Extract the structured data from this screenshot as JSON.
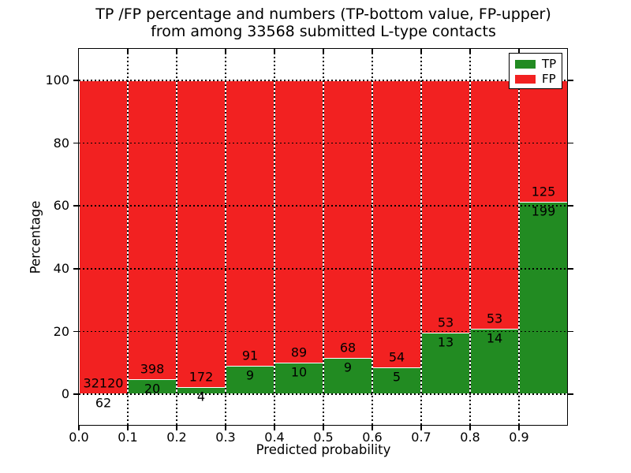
{
  "figure": {
    "title_line1": "TP /FP percentage and numbers (TP-bottom value, FP-upper)",
    "title_line2": "from among 33568 submitted L-type contacts"
  },
  "chart_data": {
    "type": "bar",
    "stacked": true,
    "title": "TP /FP percentage and numbers (TP-bottom value, FP-upper) from among 33568 submitted L-type contacts",
    "xlabel": "Predicted probability",
    "ylabel": "Percentage",
    "xlim": [
      0.0,
      1.0
    ],
    "ylim": [
      -10,
      110
    ],
    "grid": "dotted black on both axes",
    "legend_position": "upper right",
    "total_contacts": 33568,
    "series": [
      {
        "name": "TP",
        "color": "#228b22"
      },
      {
        "name": "FP",
        "color": "#f22121"
      }
    ],
    "xticks": {
      "values": [
        0.0,
        0.1,
        0.2,
        0.3,
        0.4,
        0.5,
        0.6,
        0.7,
        0.8,
        0.9
      ],
      "labels": [
        "0.0",
        "0.1",
        "0.2",
        "0.3",
        "0.4",
        "0.5",
        "0.6",
        "0.7",
        "0.8",
        "0.9"
      ]
    },
    "yticks": {
      "values": [
        0,
        20,
        40,
        60,
        80,
        100
      ],
      "labels": [
        "0",
        "20",
        "40",
        "60",
        "80",
        "100"
      ]
    },
    "bins": [
      {
        "range": [
          0.0,
          0.1
        ],
        "tp": 62,
        "fp": 32120
      },
      {
        "range": [
          0.1,
          0.2
        ],
        "tp": 20,
        "fp": 398
      },
      {
        "range": [
          0.2,
          0.3
        ],
        "tp": 4,
        "fp": 172
      },
      {
        "range": [
          0.3,
          0.4
        ],
        "tp": 9,
        "fp": 91
      },
      {
        "range": [
          0.4,
          0.5
        ],
        "tp": 10,
        "fp": 89
      },
      {
        "range": [
          0.5,
          0.6
        ],
        "tp": 9,
        "fp": 68
      },
      {
        "range": [
          0.6,
          0.7
        ],
        "tp": 5,
        "fp": 54
      },
      {
        "range": [
          0.7,
          0.8
        ],
        "tp": 13,
        "fp": 53
      },
      {
        "range": [
          0.8,
          0.9
        ],
        "tp": 14,
        "fp": 53
      },
      {
        "range": [
          0.9,
          1.0
        ],
        "tp": 199,
        "fp": 125
      }
    ],
    "annotation_rule": "Each bar is normalized to 100%; TP count printed below the TP/FP boundary, FP count printed above it"
  },
  "colors": {
    "tp_green": "#228b22",
    "fp_red": "#f22121",
    "background": "#ffffff",
    "grid": "#000000",
    "bar_edge": "#ffffff"
  }
}
